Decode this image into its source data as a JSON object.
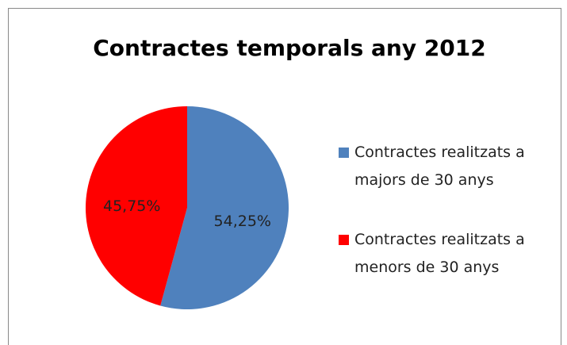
{
  "chart_data": {
    "type": "pie",
    "title": "Contractes temporals any 2012",
    "categories": [
      "Contractes realitzats a majors de 30 anys",
      "Contractes realitzats a menors de 30 anys"
    ],
    "values": [
      54.25,
      45.75
    ],
    "value_labels": [
      "54,25%",
      "45,75%"
    ],
    "colors": [
      "#4f81bd",
      "#ff0000"
    ],
    "legend": "right"
  }
}
